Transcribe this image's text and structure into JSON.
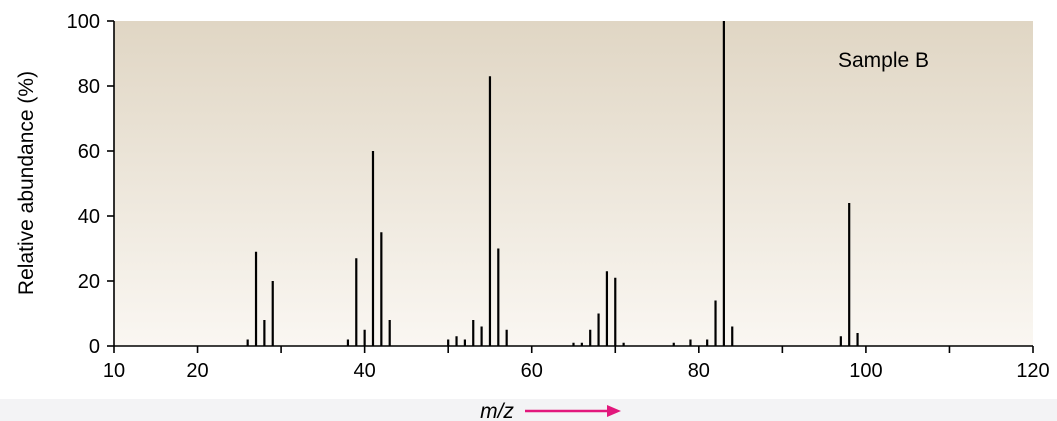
{
  "chart_data": {
    "type": "bar",
    "xlabel": "m/z",
    "ylabel": "Relative abundance (%)",
    "xlim": [
      10,
      120
    ],
    "ylim": [
      0,
      100
    ],
    "x_ticks": [
      "10",
      "20",
      "40",
      "60",
      "80",
      "100",
      "120"
    ],
    "y_ticks": [
      "0",
      "20",
      "40",
      "60",
      "80",
      "100"
    ],
    "annotation": "Sample B",
    "grid": false,
    "colors": {
      "bar": "#000000",
      "plot_bg_top": "#e0d6c4",
      "plot_bg_bottom": "#faf7f2",
      "arrow": "#e2177c",
      "footer_band": "#f3f3f5"
    },
    "x": [
      26,
      27,
      28,
      29,
      38,
      39,
      40,
      41,
      42,
      43,
      50,
      51,
      52,
      53,
      54,
      55,
      56,
      57,
      65,
      66,
      67,
      68,
      69,
      70,
      71,
      77,
      79,
      81,
      82,
      83,
      84,
      97,
      98,
      99
    ],
    "values": [
      2,
      29,
      8,
      20,
      2,
      27,
      5,
      60,
      35,
      8,
      2,
      3,
      2,
      8,
      6,
      83,
      30,
      5,
      1,
      1,
      5,
      10,
      23,
      21,
      1,
      1,
      2,
      2,
      14,
      100,
      6,
      3,
      44,
      4
    ]
  }
}
